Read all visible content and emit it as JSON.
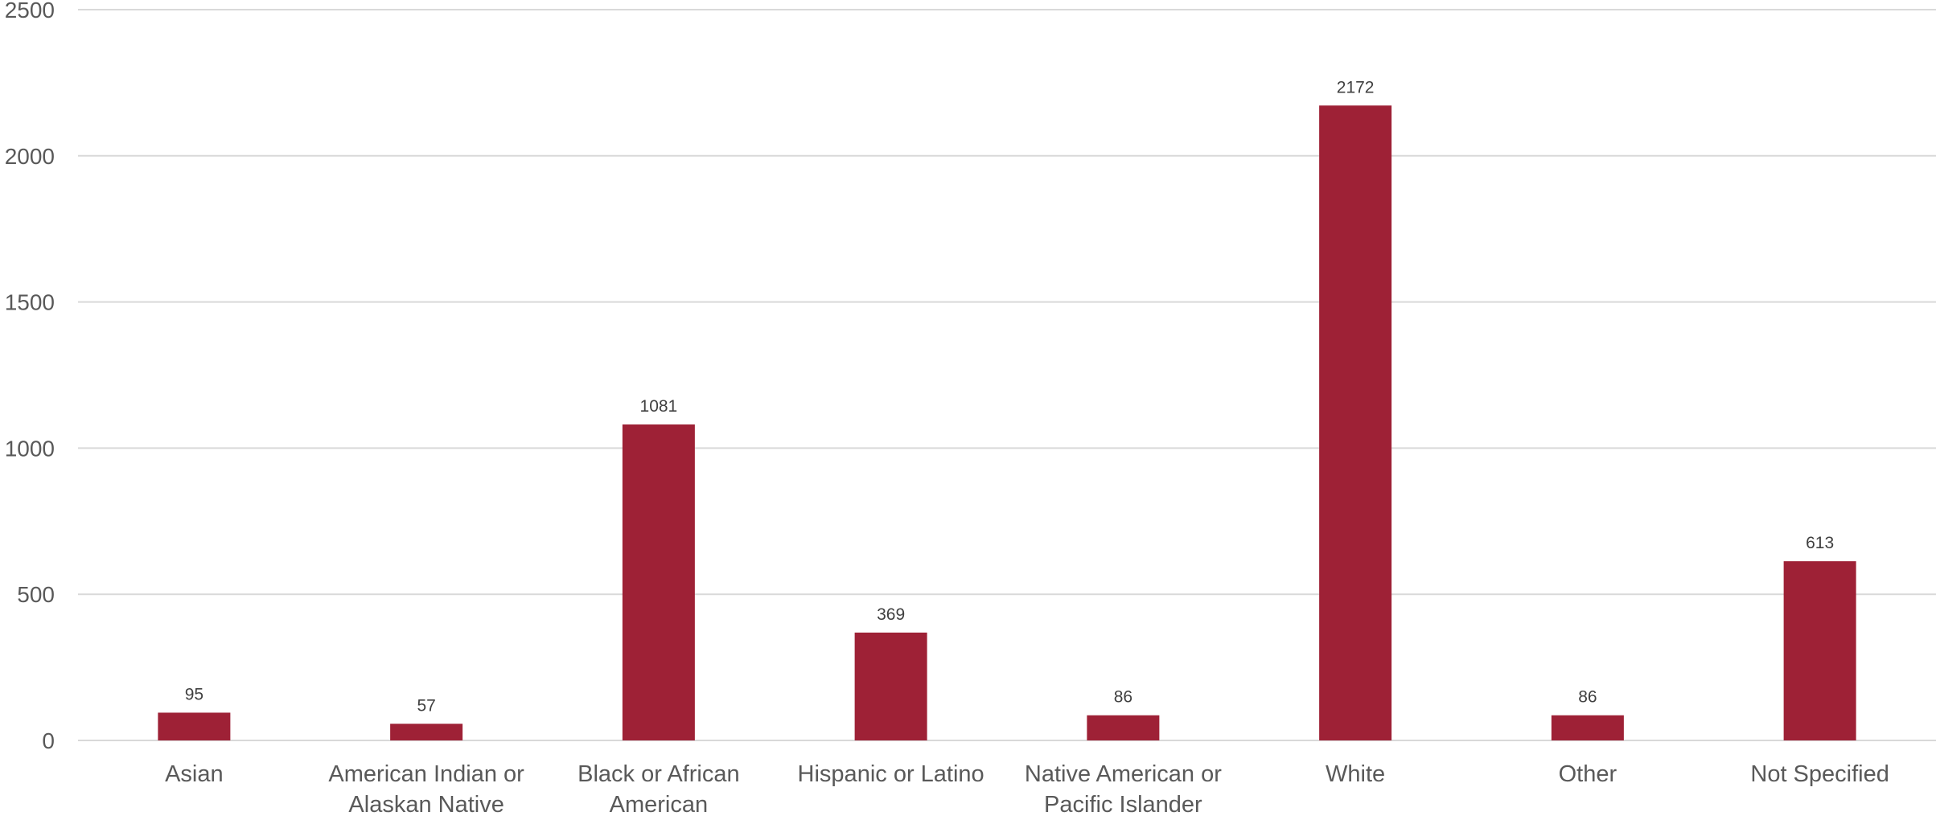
{
  "chart_data": {
    "type": "bar",
    "categories": [
      [
        "Asian"
      ],
      [
        "American Indian or",
        "Alaskan Native"
      ],
      [
        "Black or African",
        "American"
      ],
      [
        "Hispanic or Latino"
      ],
      [
        "Native American or",
        "Pacific Islander"
      ],
      [
        "White"
      ],
      [
        "Other"
      ],
      [
        "Not Specified"
      ]
    ],
    "values": [
      95,
      57,
      1081,
      369,
      86,
      2172,
      86,
      613
    ],
    "data_labels": [
      "95",
      "57",
      "1081",
      "369",
      "86",
      "2172",
      "86",
      "613"
    ],
    "ylim": [
      0,
      2500
    ],
    "yticks": [
      "0",
      "500",
      "1000",
      "1500",
      "2000",
      "2500"
    ],
    "title": "",
    "xlabel": "",
    "ylabel": "",
    "grid": true,
    "legend": "none",
    "bar_color": "#9e2136"
  }
}
